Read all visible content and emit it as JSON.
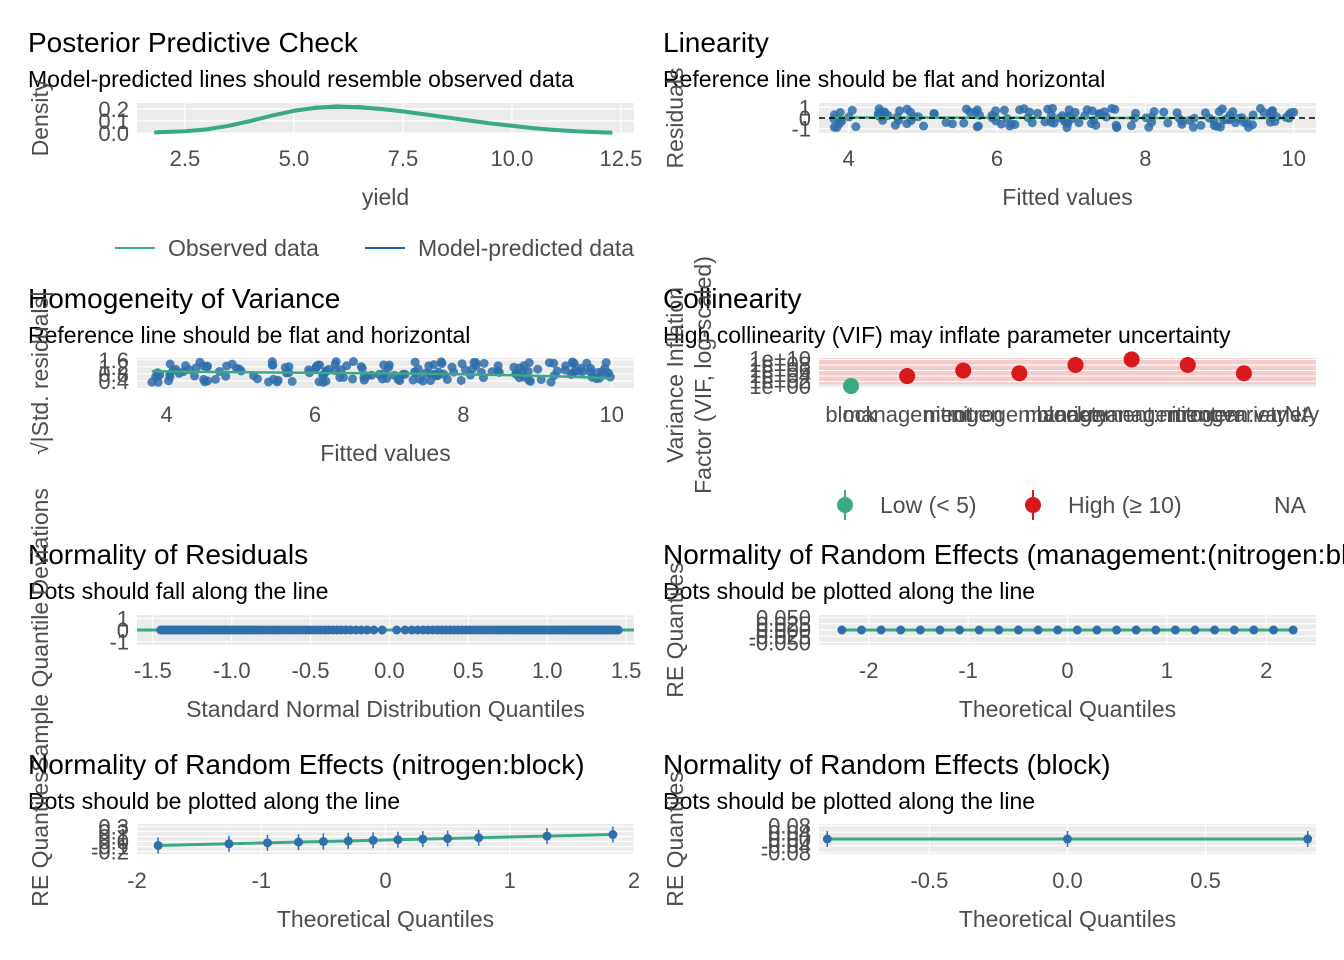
{
  "palette": {
    "observed": "#3aaa85",
    "predicted": "#1f66a6",
    "points": "#2f6fab",
    "fit_line": "#3aaa85",
    "low_vif": "#3aaa85",
    "high_vif": "#d7191c",
    "panel_bg": "#ebebeb",
    "vif_band": "#f4cccc"
  },
  "chart_data": [
    {
      "id": "ppc",
      "type": "area",
      "title": "Posterior Predictive Check",
      "subtitle": "Model-predicted lines should resemble observed data",
      "xlabel": "yield",
      "ylabel": "Density",
      "xlim": [
        1.4,
        12.8
      ],
      "ylim": [
        0,
        0.25
      ],
      "x_ticks": [
        "2.5",
        "5.0",
        "7.5",
        "10.0",
        "12.5"
      ],
      "y_ticks": [
        "0.0",
        "0.1",
        "0.2"
      ],
      "x": [
        1.8,
        2.5,
        3.0,
        3.5,
        4.0,
        4.5,
        5.0,
        5.5,
        6.0,
        6.5,
        7.0,
        7.5,
        8.0,
        8.5,
        9.0,
        9.5,
        10.0,
        10.5,
        11.0,
        11.5,
        12.0,
        12.3
      ],
      "observed": [
        0.005,
        0.015,
        0.03,
        0.06,
        0.1,
        0.145,
        0.185,
        0.21,
        0.22,
        0.215,
        0.2,
        0.18,
        0.155,
        0.13,
        0.105,
        0.08,
        0.06,
        0.04,
        0.025,
        0.013,
        0.006,
        0.003
      ],
      "legend": [
        "Observed data",
        "Model-predicted data"
      ]
    },
    {
      "id": "linearity",
      "type": "scatter",
      "title": "Linearity",
      "subtitle": "Reference line should be flat and horizontal",
      "xlabel": "Fitted values",
      "ylabel": "Residuals",
      "xlim": [
        3.6,
        10.3
      ],
      "ylim": [
        -1.4,
        1.4
      ],
      "x_ticks": [
        "4",
        "6",
        "8",
        "10"
      ],
      "y_ticks": [
        "-1",
        "0",
        "1"
      ],
      "reference_line": 0
    },
    {
      "id": "homogeneity",
      "type": "scatter",
      "title": "Homogeneity of Variance",
      "subtitle": "Reference line should be flat and horizontal",
      "xlabel": "Fitted values",
      "ylabel": "√|Std. residuals|",
      "xlim": [
        3.6,
        10.3
      ],
      "ylim": [
        0,
        1.7
      ],
      "x_ticks": [
        "4",
        "6",
        "8",
        "10"
      ],
      "y_ticks": [
        "0.4",
        "0.8",
        "1.2",
        "1.6"
      ]
    },
    {
      "id": "collinearity",
      "type": "scatter",
      "title": "Collinearity",
      "subtitle": "High collinearity (VIF) may inflate parameter uncertainty",
      "xlabel": "",
      "ylabel": "Variance Inflation\nFactor (VIF, log-scaled)",
      "categories": [
        "block",
        "management",
        "nitrogen",
        "nitrogen:block",
        "variety",
        "management:nitrogen",
        "management:variety",
        "nitrogen:variety",
        "NA"
      ],
      "values": [
        2.5,
        10000.0,
        1000000.0,
        100000.0,
        100000000.0,
        10000000000.0,
        100000000.0,
        100000.0,
        null
      ],
      "y_ticks": [
        "1e+00",
        "1e+02",
        "1e+04",
        "1e+06",
        "1e+08",
        "1e+10"
      ],
      "legend": [
        "Low (< 5)",
        "High (≥ 10)",
        "NA"
      ]
    },
    {
      "id": "normality",
      "type": "scatter",
      "title": "Normality of Residuals",
      "subtitle": "Dots should fall along the line",
      "xlabel": "Standard Normal Distribution Quantiles",
      "ylabel": "Sample Quantile Deviations",
      "xlim": [
        -1.6,
        1.55
      ],
      "ylim": [
        -1.3,
        1.3
      ],
      "x_ticks": [
        "-1.5",
        "-1.0",
        "-0.5",
        "0.0",
        "0.5",
        "1.0",
        "1.5"
      ],
      "y_ticks": [
        "-1",
        "0",
        "1"
      ]
    },
    {
      "id": "re-mgmt-nitrogen",
      "type": "scatter",
      "title": "Normality of Random Effects (management:(nitrogen:block))",
      "subtitle": "Dots should be plotted along the line",
      "xlabel": "Theoretical Quantiles",
      "ylabel": "RE Quantiles",
      "xlim": [
        -2.5,
        2.5
      ],
      "ylim": [
        -0.06,
        0.06
      ],
      "x_ticks": [
        "-2",
        "-1",
        "0",
        "1",
        "2"
      ],
      "y_ticks": [
        "-0.050",
        "-0.025",
        "0.000",
        "0.025",
        "0.050"
      ]
    },
    {
      "id": "re-nitrogen-block",
      "type": "scatter",
      "title": "Normality of Random Effects (nitrogen:block)",
      "subtitle": "Dots should be plotted along the line",
      "xlabel": "Theoretical Quantiles",
      "ylabel": "RE Quantiles",
      "xlim": [
        -2.0,
        2.0
      ],
      "ylim": [
        -0.25,
        0.35
      ],
      "x_ticks": [
        "-2",
        "-1",
        "0",
        "1",
        "2"
      ],
      "y_ticks": [
        "-0.2",
        "-0.1",
        "0.0",
        "0.1",
        "0.2",
        "0.3"
      ]
    },
    {
      "id": "re-block",
      "type": "scatter",
      "title": "Normality of Random Effects (block)",
      "subtitle": "Dots should be plotted along the line",
      "xlabel": "Theoretical Quantiles",
      "ylabel": "RE Quantiles",
      "xlim": [
        -0.9,
        0.9
      ],
      "ylim": [
        -0.09,
        0.09
      ],
      "x_ticks": [
        "-0.5",
        "0.0",
        "0.5"
      ],
      "y_ticks": [
        "-0.08",
        "-0.04",
        "0.00",
        "0.04",
        "0.08"
      ],
      "x": [
        -0.87,
        0.0,
        0.87
      ],
      "y": [
        0.0,
        0.0,
        0.0
      ]
    }
  ]
}
